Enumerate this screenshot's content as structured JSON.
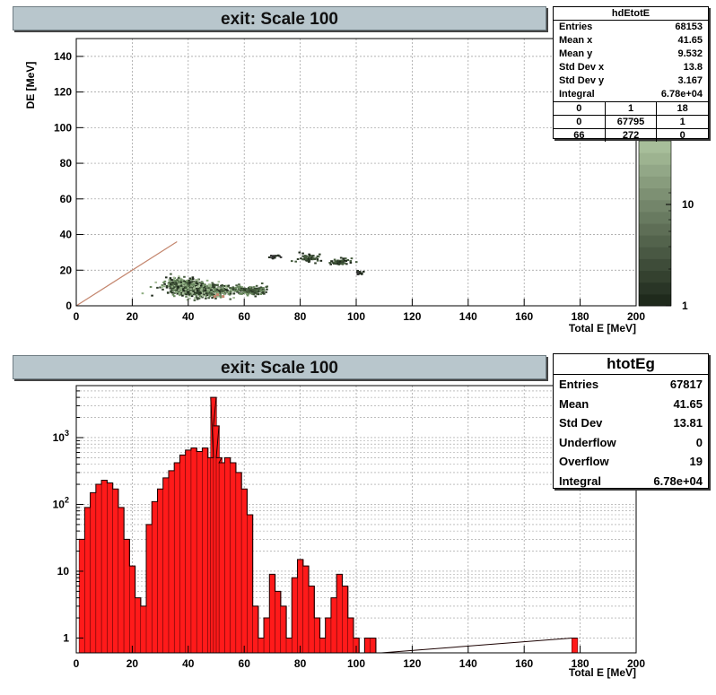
{
  "panels": [
    {
      "title": "exit: Scale 100"
    },
    {
      "title": "exit: Scale 100"
    }
  ],
  "stats_top": {
    "name": "hdEtotE",
    "rows": [
      {
        "label": "Entries",
        "value": "68153"
      },
      {
        "label": "Mean x",
        "value": "41.65"
      },
      {
        "label": "Mean y",
        "value": "9.532"
      },
      {
        "label": "Std Dev x",
        "value": "13.8"
      },
      {
        "label": "Std Dev y",
        "value": "3.167"
      },
      {
        "label": "Integral",
        "value": "6.78e+04"
      }
    ],
    "grid": [
      [
        "0",
        "1",
        "18"
      ],
      [
        "0",
        "67795",
        "1"
      ],
      [
        "66",
        "272",
        "0"
      ]
    ]
  },
  "stats_bottom": {
    "name": "htotEg",
    "rows": [
      {
        "label": "Entries",
        "value": "67817"
      },
      {
        "label": "Mean",
        "value": "41.65"
      },
      {
        "label": "Std Dev",
        "value": "13.81"
      },
      {
        "label": "Underflow",
        "value": "0"
      },
      {
        "label": "Overflow",
        "value": "19"
      },
      {
        "label": "Integral",
        "value": "6.78e+04"
      }
    ]
  },
  "colors": {
    "fill": "#ff1a1a",
    "title_bg": "#b8c6cc",
    "palette_dark": "#1f2a1c",
    "palette_light": "#a7be9a"
  },
  "chart_data": [
    {
      "type": "heatmap",
      "title": "exit: Scale 100",
      "xlabel": "Total E [MeV]",
      "ylabel": "DE [MeV]",
      "xlim": [
        0,
        200
      ],
      "ylim": [
        0,
        150
      ],
      "x_ticks": [
        "0",
        "20",
        "40",
        "60",
        "80",
        "100",
        "120",
        "140",
        "160",
        "180",
        "200"
      ],
      "y_ticks": [
        "0",
        "20",
        "40",
        "60",
        "80",
        "100",
        "120",
        "140"
      ],
      "z_scale": "log",
      "z_ticks": [
        "1",
        "10"
      ],
      "clusters": [
        {
          "x": 45,
          "y": 9,
          "sx": 9,
          "sy": 3,
          "density": "high"
        },
        {
          "x": 38,
          "y": 12,
          "sx": 5,
          "sy": 3,
          "density": "high"
        },
        {
          "x": 62,
          "y": 9,
          "sx": 5,
          "sy": 2,
          "density": "medium"
        },
        {
          "x": 82,
          "y": 27,
          "sx": 3,
          "sy": 2,
          "density": "low"
        },
        {
          "x": 94,
          "y": 25,
          "sx": 3,
          "sy": 2,
          "density": "low"
        },
        {
          "x": 70,
          "y": 28,
          "sx": 2,
          "sy": 1,
          "density": "sparse"
        },
        {
          "x": 101,
          "y": 19,
          "sx": 1,
          "sy": 1,
          "density": "sparse"
        }
      ],
      "diagonal": {
        "from": [
          0,
          0
        ],
        "to": [
          36,
          36
        ]
      },
      "grid": true
    },
    {
      "type": "area",
      "title": "exit: Scale 100",
      "xlabel": "Total E [MeV]",
      "ylabel": "",
      "xlim": [
        0,
        200
      ],
      "ylim": [
        0.6,
        6000
      ],
      "y_scale": "log",
      "x_ticks": [
        "0",
        "20",
        "40",
        "60",
        "80",
        "100",
        "120",
        "140",
        "160",
        "180",
        "200"
      ],
      "y_ticks": [
        "1",
        "10",
        "10^2",
        "10^3"
      ],
      "x": [
        2,
        4,
        6,
        8,
        10,
        12,
        14,
        16,
        18,
        20,
        22,
        24,
        26,
        28,
        30,
        32,
        34,
        36,
        38,
        40,
        42,
        44,
        46,
        48,
        49,
        50,
        51,
        52,
        54,
        56,
        58,
        60,
        62,
        64,
        66,
        68,
        70,
        72,
        74,
        76,
        78,
        80,
        82,
        84,
        86,
        88,
        90,
        92,
        94,
        96,
        98,
        100,
        102,
        104,
        106,
        108,
        178
      ],
      "values": [
        30,
        90,
        150,
        200,
        230,
        210,
        170,
        90,
        30,
        12,
        4,
        3,
        50,
        110,
        170,
        250,
        320,
        420,
        550,
        650,
        700,
        620,
        700,
        500,
        4000,
        1500,
        500,
        420,
        500,
        420,
        300,
        170,
        70,
        3,
        1,
        2,
        9,
        5,
        3,
        1,
        8,
        15,
        12,
        6,
        2,
        1,
        2,
        4,
        9,
        6,
        2,
        1,
        0,
        1,
        1,
        0,
        1
      ],
      "grid": true
    }
  ]
}
